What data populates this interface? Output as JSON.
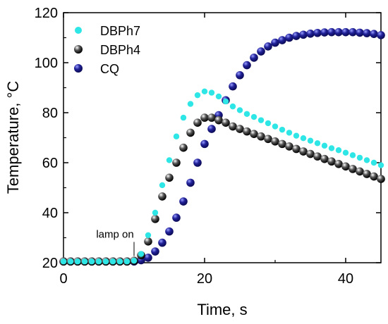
{
  "chart_data": {
    "type": "scatter",
    "xlabel": "Time, s",
    "ylabel": "Temperature, °C",
    "xlim": [
      0,
      45
    ],
    "ylim": [
      20,
      120
    ],
    "xticks": [
      0,
      20,
      40
    ],
    "yticks": [
      20,
      40,
      60,
      80,
      100,
      120
    ],
    "grid": false,
    "legend": "top-left",
    "annotation": {
      "text": "lamp on",
      "x": 10,
      "y": 21
    },
    "colors": {
      "DBPh7": "#2ee6e6",
      "DBPh4": "#111111",
      "CQ": "#1a1a8c"
    },
    "series": [
      {
        "name": "DBPh7",
        "x": [
          0,
          1,
          2,
          3,
          4,
          5,
          6,
          7,
          8,
          9,
          10,
          11,
          12,
          13,
          14,
          15,
          16,
          17,
          18,
          19,
          20,
          21,
          22,
          23,
          24,
          25,
          26,
          27,
          28,
          29,
          30,
          31,
          32,
          33,
          34,
          35,
          36,
          37,
          38,
          39,
          40,
          41,
          42,
          43,
          44,
          45
        ],
        "y": [
          20.5,
          20.5,
          20.5,
          20.5,
          20.5,
          20.5,
          20.5,
          20.5,
          20.5,
          20.5,
          20.8,
          23.5,
          31,
          40,
          51,
          61,
          70.5,
          78,
          83.5,
          87,
          88.5,
          88,
          86.5,
          84.5,
          82.5,
          81,
          79.5,
          78.3,
          77,
          75.8,
          74.5,
          73.2,
          72,
          70.8,
          69.8,
          68.8,
          67.8,
          66.8,
          65.8,
          65,
          64,
          63,
          62,
          61,
          60,
          59
        ]
      },
      {
        "name": "DBPh4",
        "x": [
          0,
          1,
          2,
          3,
          4,
          5,
          6,
          7,
          8,
          9,
          10,
          11,
          12,
          13,
          14,
          15,
          16,
          17,
          18,
          19,
          20,
          21,
          22,
          23,
          24,
          25,
          26,
          27,
          28,
          29,
          30,
          31,
          32,
          33,
          34,
          35,
          36,
          37,
          38,
          39,
          40,
          41,
          42,
          43,
          44,
          45
        ],
        "y": [
          20.5,
          20.5,
          20.5,
          20.5,
          20.5,
          20.5,
          20.5,
          20.5,
          20.5,
          20.5,
          20.8,
          23,
          28.5,
          37.5,
          46.5,
          54,
          60,
          66,
          72,
          76,
          78,
          78,
          77,
          76,
          74.5,
          73.5,
          72.5,
          71.5,
          70.5,
          69.5,
          68.5,
          67.5,
          66.5,
          65.5,
          64.5,
          63.5,
          62.5,
          61.5,
          60.5,
          59.5,
          58.5,
          57.5,
          56.5,
          55.5,
          54.5,
          53.5
        ]
      },
      {
        "name": "CQ",
        "x": [
          0,
          1,
          2,
          3,
          4,
          5,
          6,
          7,
          8,
          9,
          10,
          11,
          12,
          13,
          14,
          15,
          16,
          17,
          18,
          19,
          20,
          21,
          22,
          23,
          24,
          25,
          26,
          27,
          28,
          29,
          30,
          31,
          32,
          33,
          34,
          35,
          36,
          37,
          38,
          39,
          40,
          41,
          42,
          43,
          44,
          45
        ],
        "y": [
          20.5,
          20.5,
          20.5,
          20.5,
          20.5,
          20.5,
          20.5,
          20.5,
          20.5,
          20.5,
          20.5,
          21,
          22,
          24.5,
          28,
          32.5,
          38,
          44.5,
          52,
          60,
          67.5,
          73.5,
          79,
          85,
          90.5,
          95,
          99,
          102,
          104.5,
          106.5,
          108,
          109,
          110,
          110.7,
          111.2,
          111.6,
          111.9,
          112.1,
          112.2,
          112.2,
          112.2,
          112.2,
          112,
          111.8,
          111.5,
          111
        ]
      }
    ]
  }
}
